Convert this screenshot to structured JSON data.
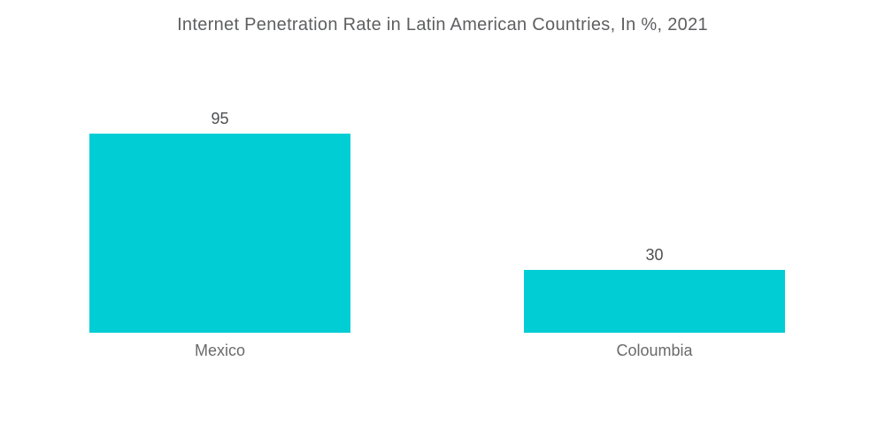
{
  "chart_data": {
    "type": "bar",
    "orientation": "vertical",
    "title": "Internet Penetration Rate in Latin American Countries, In %, 2021",
    "categories": [
      "Mexico",
      "Coloumbia"
    ],
    "values": [
      95,
      30
    ],
    "value_labels": [
      "95",
      "30"
    ],
    "unit": "%",
    "xlabel": "",
    "ylabel": "",
    "ylim": [
      0,
      100
    ],
    "grid": false,
    "legend": false,
    "axes_visible": false,
    "bar_color": "#00cdd4"
  },
  "colors": {
    "bar": "#00cdd4",
    "title_text": "#5e5f61",
    "value_text": "#4e4f51",
    "category_text": "#6a6a6a",
    "background": "#ffffff"
  }
}
